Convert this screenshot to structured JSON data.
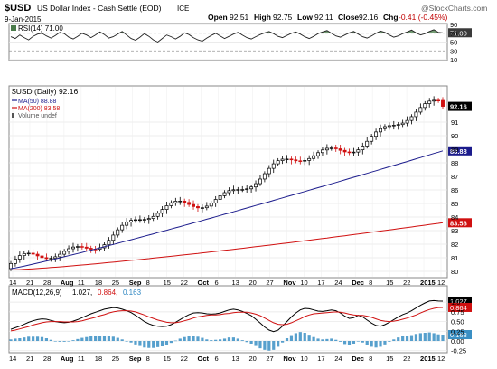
{
  "header": {
    "symbol": "$USD",
    "name": "US Dollar Index - Cash Settle (EOD)",
    "exchange": "ICE",
    "date": "9-Jan-2015",
    "open_label": "Open",
    "open": "92.51",
    "high_label": "High",
    "high": "92.75",
    "low_label": "Low",
    "low": "92.11",
    "close_label": "Close",
    "close": "92.16",
    "chg_label": "Chg",
    "chg": "-0.41 (-0.45%)",
    "watermark": "@StockCharts.com"
  },
  "chart_data": [
    {
      "type": "line",
      "panel": "rsi",
      "label": "RSI(14) 71.00",
      "ylim": [
        10,
        90
      ],
      "y_ticks": [
        90,
        70,
        50,
        30,
        10
      ],
      "current_value": "71.00",
      "series": [
        {
          "values": [
            62,
            58,
            66,
            60,
            55,
            63,
            68,
            70,
            64,
            59,
            65,
            72,
            69,
            61,
            57,
            63,
            70,
            66,
            60,
            66,
            73,
            67,
            59,
            62,
            68,
            74,
            66,
            58,
            54,
            61,
            69,
            63,
            55,
            50,
            58,
            66,
            62,
            57,
            63,
            71,
            67,
            60,
            55,
            52,
            59,
            65,
            70,
            64,
            58,
            63,
            68,
            72,
            66,
            60,
            57,
            62,
            67,
            71,
            74,
            69,
            63,
            60,
            65,
            70,
            73,
            68,
            62,
            58,
            63,
            69,
            73,
            76,
            70,
            64,
            61,
            66,
            71,
            74,
            68,
            62,
            59,
            64,
            70,
            75,
            72,
            66,
            61,
            64,
            69,
            73,
            77,
            71,
            66,
            69,
            74,
            78,
            72,
            71
          ]
        }
      ]
    },
    {
      "type": "candlestick",
      "panel": "price",
      "label": "$USD (Daily) 92.16",
      "ylim": [
        79.6,
        93.6
      ],
      "y_ticks": [
        80,
        81,
        82,
        83,
        84,
        85,
        86,
        87,
        88,
        89,
        90,
        91
      ],
      "last_value": "92.16",
      "start": 80.2,
      "end": 92.16,
      "peak_idx": 96,
      "peak": 92.75,
      "trough_end": 91.8,
      "dip_idx": 86,
      "dip": 90.4,
      "legend": [
        {
          "label": "$USD (Daily) 92.16",
          "color": "#000000"
        },
        {
          "label": "MA(50) 88.88",
          "color": "#1b1b8c"
        },
        {
          "label": "MA(200) 83.58",
          "color": "#d01010"
        },
        {
          "label": "Volume undef",
          "color": "#555555"
        }
      ],
      "ma50": {
        "start": 80.2,
        "end": 88.88,
        "label": "88.88",
        "color": "#1b1b8c"
      },
      "ma200": {
        "start": 80.1,
        "end": 83.58,
        "label": "83.58",
        "color": "#d01010"
      },
      "x_labels": [
        "14",
        "21",
        "28",
        "Aug",
        "11",
        "18",
        "25",
        "Sep",
        "8",
        "15",
        "22",
        "Oct",
        "6",
        "13",
        "20",
        "27",
        "Nov",
        "10",
        "17",
        "24",
        "Dec",
        "8",
        "15",
        "22",
        "2015",
        "12"
      ]
    },
    {
      "type": "line",
      "panel": "macd",
      "label": "MACD(12,26,9) 1.027, 0.864, 0.163",
      "label_macd": "MACD(12,26,9)",
      "label_macd_v": "1.027,",
      "label_signal_v": "0.864,",
      "label_hist_v": "0.163",
      "ylim": [
        -0.28,
        1.12
      ],
      "y_ticks": [
        1.0,
        0.75,
        0.5,
        0.25,
        0.0,
        -0.25
      ],
      "y_tick_labels": [
        "1.0",
        "0.75",
        "0.50",
        "0.25",
        "0.00",
        "-0.25"
      ],
      "markers": {
        "macd": "1.027",
        "signal": "0.864",
        "hist": "0.163"
      },
      "series": [
        {
          "name": "MACD",
          "color": "#000000",
          "values": [
            0.3,
            0.34,
            0.38,
            0.43,
            0.48,
            0.52,
            0.55,
            0.57,
            0.56,
            0.53,
            0.5,
            0.48,
            0.47,
            0.48,
            0.51,
            0.55,
            0.6,
            0.65,
            0.7,
            0.74,
            0.78,
            0.82,
            0.84,
            0.86,
            0.85,
            0.82,
            0.78,
            0.73,
            0.66,
            0.58,
            0.5,
            0.44,
            0.4,
            0.38,
            0.37,
            0.38,
            0.42,
            0.48,
            0.55,
            0.62,
            0.68,
            0.72,
            0.73,
            0.72,
            0.7,
            0.69,
            0.7,
            0.72,
            0.76,
            0.8,
            0.82,
            0.8,
            0.76,
            0.71,
            0.65,
            0.56,
            0.46,
            0.36,
            0.28,
            0.24,
            0.28,
            0.38,
            0.5,
            0.62,
            0.72,
            0.8,
            0.84,
            0.83,
            0.8,
            0.77,
            0.76,
            0.78,
            0.8,
            0.78,
            0.72,
            0.64,
            0.58,
            0.6,
            0.66,
            0.62,
            0.54,
            0.46,
            0.4,
            0.38,
            0.42,
            0.48,
            0.55,
            0.62,
            0.68,
            0.72,
            0.78,
            0.85,
            0.92,
            0.98,
            1.03,
            1.04,
            1.03,
            1.027
          ]
        },
        {
          "name": "Signal",
          "color": "#d01010",
          "values": [
            0.26,
            0.28,
            0.31,
            0.34,
            0.37,
            0.41,
            0.44,
            0.47,
            0.49,
            0.5,
            0.5,
            0.5,
            0.49,
            0.49,
            0.49,
            0.5,
            0.52,
            0.55,
            0.58,
            0.61,
            0.65,
            0.68,
            0.72,
            0.75,
            0.77,
            0.78,
            0.78,
            0.77,
            0.75,
            0.71,
            0.67,
            0.62,
            0.58,
            0.54,
            0.51,
            0.48,
            0.47,
            0.47,
            0.49,
            0.52,
            0.55,
            0.59,
            0.62,
            0.64,
            0.66,
            0.67,
            0.67,
            0.68,
            0.7,
            0.71,
            0.73,
            0.74,
            0.74,
            0.74,
            0.72,
            0.69,
            0.65,
            0.59,
            0.53,
            0.47,
            0.43,
            0.42,
            0.43,
            0.47,
            0.52,
            0.57,
            0.63,
            0.67,
            0.7,
            0.71,
            0.72,
            0.73,
            0.74,
            0.75,
            0.74,
            0.72,
            0.69,
            0.67,
            0.66,
            0.66,
            0.64,
            0.61,
            0.57,
            0.53,
            0.51,
            0.5,
            0.51,
            0.53,
            0.56,
            0.59,
            0.63,
            0.67,
            0.72,
            0.77,
            0.81,
            0.84,
            0.86,
            0.864
          ]
        }
      ]
    }
  ]
}
